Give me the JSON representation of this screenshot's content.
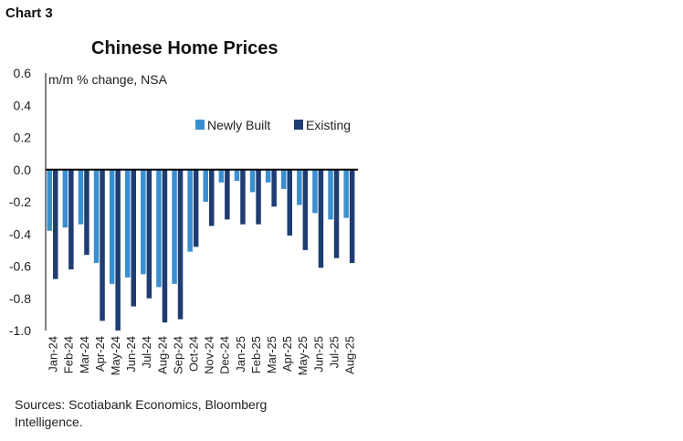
{
  "header": {
    "label": "Chart 3"
  },
  "footer": {
    "sources": "Sources: Scotiabank Economics, Bloomberg Intelligence."
  },
  "colors": {
    "newly_built": "#3a8fd0",
    "existing": "#1f3d72",
    "axis": "#000000"
  },
  "chart_data": {
    "type": "bar",
    "title": "Chinese Home Prices",
    "units_label": "m/m % change, NSA",
    "xlabel": "",
    "ylabel": "",
    "ylim": [
      -1.0,
      0.6
    ],
    "yticks": [
      "0.6",
      "0.4",
      "0.2",
      "0.0",
      "-0.2",
      "-0.4",
      "-0.6",
      "-0.8",
      "-1.0"
    ],
    "legend_position": "top-right",
    "grid": false,
    "categories": [
      "Jan-24",
      "Feb-24",
      "Mar-24",
      "Apr-24",
      "May-24",
      "Jun-24",
      "Jul-24",
      "Aug-24",
      "Sep-24",
      "Oct-24",
      "Nov-24",
      "Dec-24",
      "Jan-25",
      "Feb-25",
      "Mar-25",
      "Apr-25",
      "May-25",
      "Jun-25",
      "Jul-25",
      "Aug-25"
    ],
    "series": [
      {
        "name": "Newly Built",
        "values": [
          -0.38,
          -0.36,
          -0.34,
          -0.58,
          -0.71,
          -0.67,
          -0.65,
          -0.73,
          -0.71,
          -0.51,
          -0.2,
          -0.08,
          -0.07,
          -0.14,
          -0.08,
          -0.12,
          -0.22,
          -0.27,
          -0.31,
          -0.3
        ]
      },
      {
        "name": "Existing",
        "values": [
          -0.68,
          -0.62,
          -0.53,
          -0.94,
          -1.0,
          -0.85,
          -0.8,
          -0.95,
          -0.93,
          -0.48,
          -0.35,
          -0.31,
          -0.34,
          -0.34,
          -0.23,
          -0.41,
          -0.5,
          -0.61,
          -0.55,
          -0.58
        ]
      }
    ]
  }
}
